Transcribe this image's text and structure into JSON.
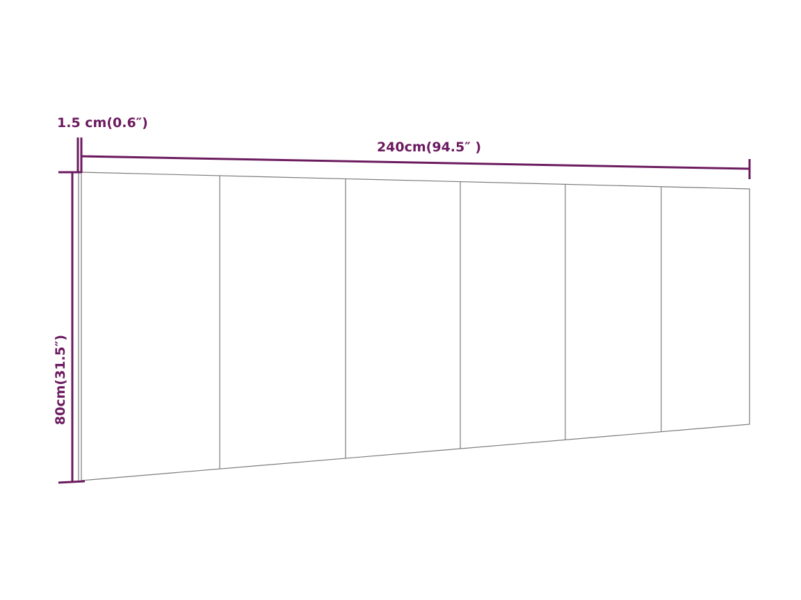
{
  "colors": {
    "dimension": "#6b1a5e",
    "outline": "#7a7a7a"
  },
  "dimensions": {
    "thickness_label": "1.5 cm(0.6″)",
    "width_label": "240cm(94.5″ )",
    "height_label": "80cm(31.5″)"
  },
  "panel": {
    "segments": 6
  }
}
